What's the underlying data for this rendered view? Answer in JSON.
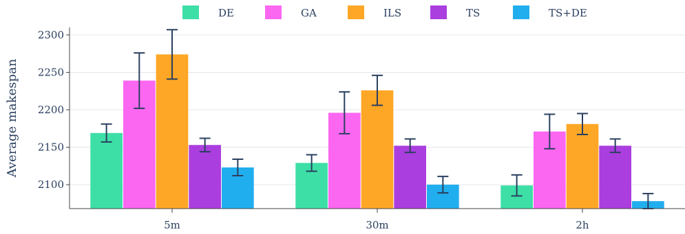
{
  "chart_data": {
    "type": "bar",
    "title": "",
    "xlabel": "",
    "ylabel": "Average makespan",
    "categories": [
      "5m",
      "30m",
      "2h"
    ],
    "ylim": [
      2068,
      2310
    ],
    "yticks": [
      2100,
      2150,
      2200,
      2250,
      2300
    ],
    "grid": true,
    "legend_position": "top",
    "series": [
      {
        "name": "DE",
        "color": "#3ddfa6",
        "values": [
          2169,
          2129,
          2099
        ],
        "error": [
          12,
          11,
          14
        ]
      },
      {
        "name": "GA",
        "color": "#fb67f1",
        "values": [
          2239,
          2196,
          2171
        ],
        "error": [
          37,
          28,
          23
        ]
      },
      {
        "name": "ILS",
        "color": "#fea726",
        "values": [
          2274,
          2226,
          2181
        ],
        "error": [
          33,
          20,
          14
        ]
      },
      {
        "name": "TS",
        "color": "#ab3ede",
        "values": [
          2153,
          2152,
          2152
        ],
        "error": [
          9,
          9,
          9
        ]
      },
      {
        "name": "TS+DE",
        "color": "#21aeee",
        "values": [
          2123,
          2100,
          2078
        ],
        "error": [
          11,
          11,
          10
        ]
      }
    ]
  }
}
